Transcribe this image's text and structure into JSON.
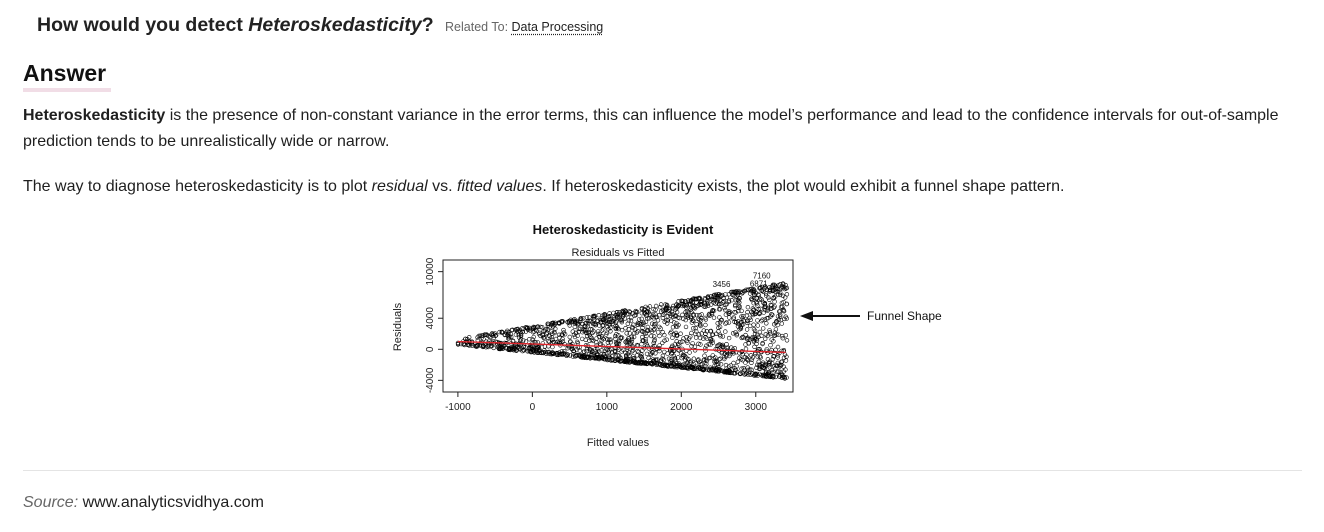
{
  "question": {
    "prefix": "How would you detect ",
    "term": "Heteroskedasticity",
    "suffix": "?",
    "related_label": "Related To:",
    "related_link": "Data Processing"
  },
  "answer": {
    "heading": "Answer",
    "para1": {
      "bold": "Heteroskedasticity",
      "text": " is the presence of non-constant variance in the error terms, this can influence the model’s performance and lead to the confidence intervals for out-of-sample prediction tends to be unrealistically wide or narrow."
    },
    "para2": {
      "t1": "The way to diagnose heteroskedasticity is to plot ",
      "i1": "residual",
      "t2": " vs. ",
      "i2": "fitted values",
      "t3": ". If heteroskedasticity exists, the plot would exhibit a funnel shape pattern."
    }
  },
  "chart_data": {
    "type": "scatter",
    "title": "Heteroskedasticity is Evident",
    "subtitle": "Residuals vs Fitted",
    "xlabel": "Fitted values",
    "ylabel": "Residuals",
    "xlim": [
      -1200,
      3500
    ],
    "ylim": [
      -5500,
      11500
    ],
    "xticks": [
      -1000,
      0,
      1000,
      2000,
      3000
    ],
    "xtick_labels": [
      "-1000",
      "0",
      "1000",
      "2000",
      "3000"
    ],
    "yticks": [
      -4000,
      0,
      4000,
      10000
    ],
    "ytick_labels": [
      "-4000",
      "0",
      "4000",
      "10000"
    ],
    "annotation": "Funnel Shape",
    "outlier_labels": [
      {
        "label": "3456",
        "x": 2540,
        "y": 8000
      },
      {
        "label": "6871",
        "x": 3040,
        "y": 8100
      },
      {
        "label": "7160",
        "x": 3080,
        "y": 9100
      }
    ],
    "funnel": {
      "x_start": -1000,
      "x_end": 3420,
      "upper_at_start": 1300,
      "upper_at_end": 8600,
      "lower_at_start": 600,
      "lower_at_end": -3800
    },
    "trend_line": {
      "x": [
        -1000,
        3400
      ],
      "y": [
        1000,
        -400
      ],
      "color": "#e0242b"
    },
    "point_color": "#000000"
  },
  "source": {
    "label": "Source:",
    "text": " www.analyticsvidhya.com"
  }
}
